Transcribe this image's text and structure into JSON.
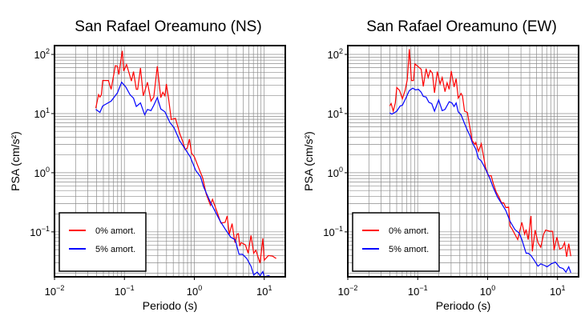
{
  "chart_data": [
    {
      "type": "line",
      "title": "San Rafael Oreamuno (NS)",
      "xlabel": "Periodo (s)",
      "ylabel": "PSA (cm/s²)",
      "xscale": "log",
      "yscale": "log",
      "xlim": [
        0.01,
        20
      ],
      "ylim": [
        0.0174,
        141
      ],
      "grid": true,
      "legend_position": "bottom-left",
      "x_ticks": [
        {
          "base": "10",
          "exp": "−2",
          "value": 0.01
        },
        {
          "base": "10",
          "exp": "−1",
          "value": 0.1
        },
        {
          "base": "10",
          "exp": "0",
          "value": 1
        },
        {
          "base": "10",
          "exp": "1",
          "value": 10
        }
      ],
      "y_ticks": [
        {
          "base": "10",
          "exp": "−1",
          "value": 0.1
        },
        {
          "base": "10",
          "exp": "0",
          "value": 1
        },
        {
          "base": "10",
          "exp": "1",
          "value": 10
        },
        {
          "base": "10",
          "exp": "2",
          "value": 100
        }
      ],
      "series": [
        {
          "name": "0% amort.",
          "color": "#ff0000",
          "log_period": [
            -1.41,
            -1.37,
            -1.35,
            -1.33,
            -1.31,
            -1.23,
            -1.19,
            -1.13,
            -1.1,
            -1.08,
            -1.06,
            -1.03,
            -1.01,
            -0.97,
            -0.9,
            -0.87,
            -0.83,
            -0.81,
            -0.77,
            -0.73,
            -0.67,
            -0.62,
            -0.58,
            -0.53,
            -0.48,
            -0.45,
            -0.42,
            -0.4,
            -0.37,
            -0.33,
            -0.27,
            -0.21,
            -0.17,
            -0.13,
            -0.1,
            -0.07,
            -0.04,
            0.0,
            0.06,
            0.12,
            0.17,
            0.23,
            0.26,
            0.33,
            0.38,
            0.44,
            0.47,
            0.5,
            0.54,
            0.58,
            0.61,
            0.63,
            0.65,
            0.67,
            0.73,
            0.77,
            0.81,
            0.85,
            0.88,
            0.94,
            0.98,
            1.0,
            1.06,
            1.12,
            1.17
          ],
          "log_psa": [
            1.09,
            1.32,
            1.28,
            1.32,
            1.56,
            1.56,
            1.41,
            1.81,
            1.8,
            1.66,
            1.82,
            2.06,
            1.72,
            1.83,
            1.55,
            1.71,
            1.41,
            1.41,
            1.77,
            1.3,
            1.53,
            1.21,
            1.28,
            1.8,
            1.27,
            1.36,
            1.3,
            1.5,
            1.27,
            0.9,
            0.92,
            0.67,
            0.54,
            0.39,
            0.42,
            0.57,
            0.33,
            0.27,
            0.09,
            -0.09,
            -0.36,
            -0.55,
            -0.45,
            -0.68,
            -0.85,
            -0.84,
            -0.73,
            -1.04,
            -0.86,
            -1.18,
            -1.04,
            -1.03,
            -1.24,
            -1.18,
            -1.22,
            -1.36,
            -1.06,
            -1.36,
            -1.31,
            -1.53,
            -1.11,
            -1.48,
            -1.4,
            -1.41,
            -1.45
          ]
        },
        {
          "name": "5% amort.",
          "color": "#0000ff",
          "log_period": [
            -1.41,
            -1.35,
            -1.31,
            -1.19,
            -1.1,
            -1.04,
            -0.98,
            -0.92,
            -0.87,
            -0.83,
            -0.77,
            -0.71,
            -0.67,
            -0.62,
            -0.58,
            -0.53,
            -0.48,
            -0.42,
            -0.35,
            -0.29,
            -0.21,
            -0.13,
            -0.06,
            0.02,
            0.09,
            0.13,
            0.17,
            0.23,
            0.31,
            0.37,
            0.44,
            0.52,
            0.58,
            0.6,
            0.64,
            0.69,
            0.75,
            0.81,
            0.85,
            0.9,
            0.94,
            0.98,
            1.0,
            1.06,
            1.08
          ],
          "log_psa": [
            1.07,
            1.02,
            1.13,
            1.21,
            1.35,
            1.53,
            1.45,
            1.32,
            1.26,
            1.12,
            1.18,
            0.98,
            1.07,
            1.05,
            1.14,
            1.27,
            1.08,
            1.03,
            0.85,
            0.76,
            0.54,
            0.4,
            0.27,
            0.04,
            -0.07,
            -0.23,
            -0.34,
            -0.5,
            -0.68,
            -0.82,
            -0.95,
            -1.09,
            -1.13,
            -1.2,
            -1.38,
            -1.38,
            -1.45,
            -1.58,
            -1.73,
            -1.68,
            -1.74,
            -1.67,
            -1.76,
            -1.74,
            -1.75
          ]
        }
      ]
    },
    {
      "type": "line",
      "title": "San Rafael Oreamuno (EW)",
      "xlabel": "Periodo (s)",
      "ylabel": "PSA (cm/s²)",
      "xscale": "log",
      "yscale": "log",
      "xlim": [
        0.01,
        20
      ],
      "ylim": [
        0.0174,
        141
      ],
      "grid": true,
      "legend_position": "bottom-left",
      "x_ticks": [
        {
          "base": "10",
          "exp": "−2",
          "value": 0.01
        },
        {
          "base": "10",
          "exp": "−1",
          "value": 0.1
        },
        {
          "base": "10",
          "exp": "0",
          "value": 1
        },
        {
          "base": "10",
          "exp": "1",
          "value": 10
        }
      ],
      "y_ticks": [
        {
          "base": "10",
          "exp": "−1",
          "value": 0.1
        },
        {
          "base": "10",
          "exp": "0",
          "value": 1
        },
        {
          "base": "10",
          "exp": "1",
          "value": 10
        },
        {
          "base": "10",
          "exp": "2",
          "value": 100
        }
      ],
      "series": [
        {
          "name": "0% amort.",
          "color": "#ff0000",
          "log_period": [
            -1.4,
            -1.38,
            -1.35,
            -1.32,
            -1.3,
            -1.26,
            -1.22,
            -1.18,
            -1.15,
            -1.12,
            -1.09,
            -1.06,
            -1.04,
            -0.99,
            -0.95,
            -0.92,
            -0.88,
            -0.85,
            -0.82,
            -0.79,
            -0.76,
            -0.72,
            -0.68,
            -0.65,
            -0.61,
            -0.58,
            -0.55,
            -0.52,
            -0.48,
            -0.45,
            -0.42,
            -0.38,
            -0.36,
            -0.33,
            -0.29,
            -0.26,
            -0.22,
            -0.18,
            -0.17,
            -0.13,
            -0.09,
            -0.03,
            0.01,
            0.05,
            0.08,
            0.12,
            0.16,
            0.2,
            0.23,
            0.26,
            0.3,
            0.32,
            0.35,
            0.43,
            0.49,
            0.53,
            0.55,
            0.58,
            0.62,
            0.64,
            0.68,
            0.72,
            0.76,
            0.8,
            0.83,
            0.89,
            0.93,
            0.95,
            0.99,
            1.03,
            1.07,
            1.1,
            1.13,
            1.16,
            1.19
          ],
          "log_psa": [
            1.13,
            1.17,
            1.04,
            1.18,
            1.44,
            1.39,
            1.25,
            1.39,
            1.57,
            2.09,
            1.56,
            1.56,
            1.84,
            1.79,
            1.75,
            1.46,
            1.76,
            1.61,
            1.73,
            1.68,
            1.35,
            1.71,
            1.5,
            1.61,
            1.37,
            1.52,
            1.41,
            1.72,
            1.45,
            1.59,
            1.26,
            1.34,
            1.3,
            1.04,
            1.02,
            0.81,
            0.54,
            0.48,
            0.51,
            0.36,
            0.49,
            0.09,
            -0.05,
            -0.05,
            -0.18,
            -0.32,
            -0.41,
            -0.51,
            -0.51,
            -0.59,
            -0.58,
            -0.9,
            -0.95,
            -1.13,
            -0.84,
            -1.04,
            -0.96,
            -1.13,
            -0.73,
            -1.33,
            -0.97,
            -1.18,
            -1.26,
            -1.04,
            -0.97,
            -0.99,
            -0.99,
            -1.31,
            -1.09,
            -1.29,
            -1.27,
            -1.18,
            -1.42,
            -1.2,
            -1.41
          ]
        },
        {
          "name": "5% amort.",
          "color": "#0000ff",
          "log_period": [
            -1.4,
            -1.37,
            -1.34,
            -1.3,
            -1.25,
            -1.22,
            -1.17,
            -1.12,
            -1.07,
            -1.03,
            -0.99,
            -0.95,
            -0.92,
            -0.88,
            -0.84,
            -0.8,
            -0.76,
            -0.7,
            -0.65,
            -0.61,
            -0.55,
            -0.51,
            -0.48,
            -0.45,
            -0.42,
            -0.38,
            -0.33,
            -0.29,
            -0.25,
            -0.22,
            -0.17,
            -0.13,
            -0.09,
            -0.03,
            0.03,
            0.08,
            0.14,
            0.2,
            0.26,
            0.32,
            0.39,
            0.45,
            0.49,
            0.55,
            0.58,
            0.62,
            0.66,
            0.72,
            0.76,
            0.82,
            0.85,
            0.91,
            0.97,
            1.03,
            1.08,
            1.12,
            1.16,
            1.19
          ],
          "log_psa": [
            1.01,
            0.99,
            1.01,
            1.04,
            1.13,
            1.14,
            1.26,
            1.39,
            1.43,
            1.4,
            1.41,
            1.36,
            1.29,
            1.28,
            1.19,
            1.17,
            1.04,
            1.23,
            1.05,
            1.07,
            1.2,
            1.18,
            1.12,
            1.18,
            1.03,
            0.98,
            0.83,
            0.72,
            0.62,
            0.51,
            0.4,
            0.24,
            0.2,
            0.06,
            -0.09,
            -0.25,
            -0.41,
            -0.52,
            -0.64,
            -0.82,
            -0.96,
            -1.02,
            -1.13,
            -1.36,
            -1.36,
            -1.4,
            -1.47,
            -1.58,
            -1.54,
            -1.57,
            -1.59,
            -1.54,
            -1.51,
            -1.6,
            -1.62,
            -1.68,
            -1.59,
            -1.69
          ]
        }
      ]
    }
  ]
}
